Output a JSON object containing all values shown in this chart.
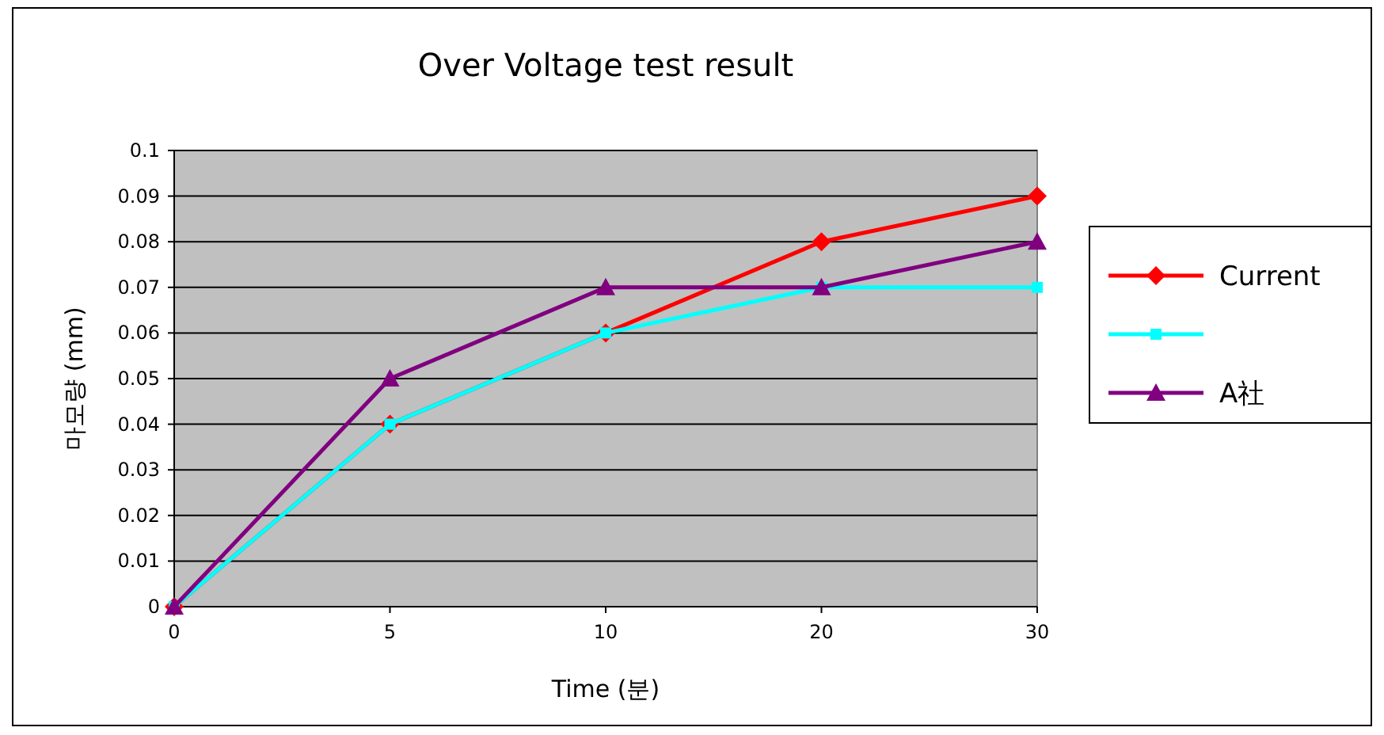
{
  "chart_data": {
    "type": "line",
    "title": "Over Voltage test result",
    "xlabel": "Time (분)",
    "ylabel": "마모량 (mm)",
    "categories": [
      "0",
      "5",
      "10",
      "20",
      "30"
    ],
    "series": [
      {
        "name": "Current",
        "color": "#ff0000",
        "marker": "diamond",
        "values": [
          0,
          0.04,
          0.06,
          0.08,
          0.09
        ]
      },
      {
        "color": "#00ffff",
        "marker": "square",
        "values": [
          0,
          0.04,
          0.06,
          0.07,
          0.07
        ]
      },
      {
        "name": "A社",
        "color": "#800080",
        "marker": "triangle",
        "values": [
          0,
          0.05,
          0.07,
          0.07,
          0.08
        ]
      }
    ],
    "ylim": [
      0,
      0.1
    ],
    "yticks": [
      0,
      0.01,
      0.02,
      0.03,
      0.04,
      0.05,
      0.06,
      0.07,
      0.08,
      0.09,
      0.1
    ],
    "grid": "y",
    "legend": "right"
  }
}
